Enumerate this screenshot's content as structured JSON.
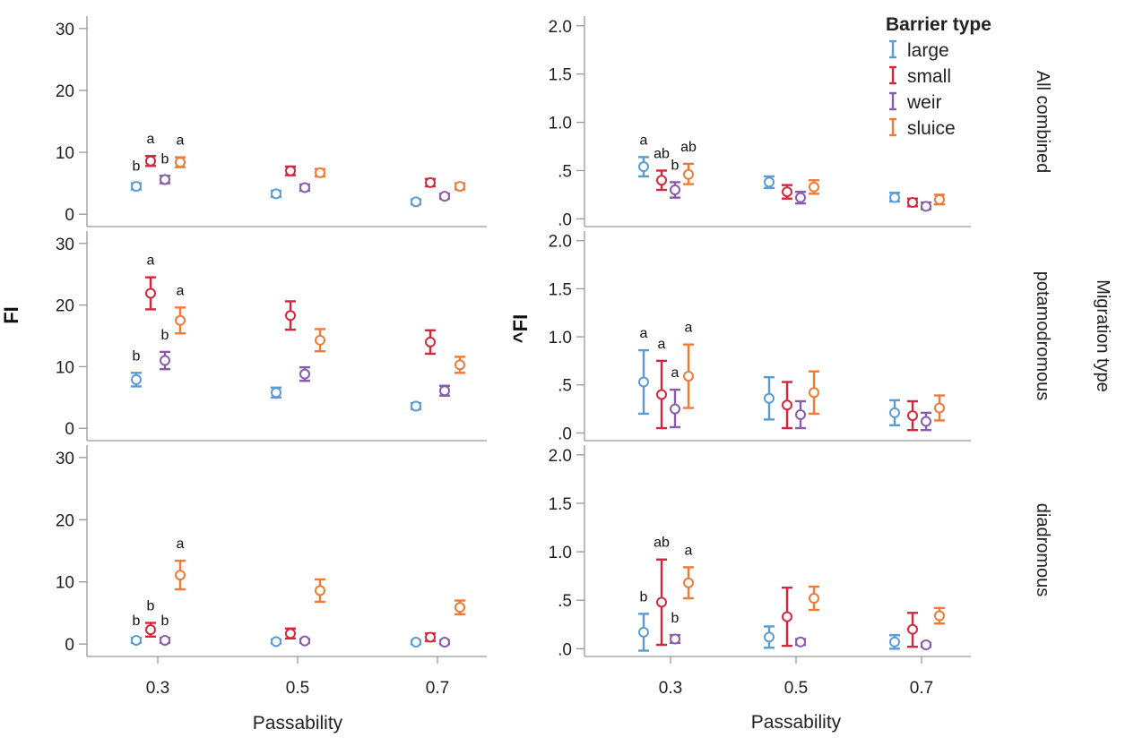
{
  "legend": {
    "title": "Barrier type",
    "items": [
      {
        "label": "large",
        "color": "#5b9bd5"
      },
      {
        "label": "small",
        "color": "#d6263b"
      },
      {
        "label": "weir",
        "color": "#8a5aab"
      },
      {
        "label": "sluice",
        "color": "#f07a36"
      }
    ]
  },
  "facet_title": "Migration type",
  "chart_data": [
    {
      "type": "scatter",
      "panel": "left-top",
      "row": "All combined",
      "ylabel": "",
      "xlabel": "",
      "x_ticks": [
        "0.3",
        "0.5",
        "0.7"
      ],
      "ylim": [
        -2,
        32
      ],
      "y_ticks": [
        "0",
        "10",
        "20",
        "30"
      ],
      "y_tick_values": [
        0,
        10,
        20,
        30
      ],
      "series": [
        {
          "name": "large",
          "values": [
            [
              4.5,
              4.0,
              5.0
            ],
            [
              3.3,
              2.8,
              3.8
            ],
            [
              2.0,
              1.6,
              2.4
            ]
          ],
          "letters": [
            "b",
            "",
            ""
          ]
        },
        {
          "name": "small",
          "values": [
            [
              8.6,
              7.8,
              9.4
            ],
            [
              7.0,
              6.3,
              7.7
            ],
            [
              5.1,
              4.5,
              5.7
            ]
          ],
          "letters": [
            "a",
            "",
            ""
          ]
        },
        {
          "name": "weir",
          "values": [
            [
              5.6,
              5.0,
              6.2
            ],
            [
              4.3,
              3.8,
              4.8
            ],
            [
              2.9,
              2.5,
              3.3
            ]
          ],
          "letters": [
            "b",
            "",
            ""
          ]
        },
        {
          "name": "sluice",
          "values": [
            [
              8.4,
              7.6,
              9.2
            ],
            [
              6.7,
              6.1,
              7.3
            ],
            [
              4.5,
              4.0,
              5.0
            ]
          ],
          "letters": [
            "a",
            "",
            ""
          ]
        }
      ]
    },
    {
      "type": "scatter",
      "panel": "left-middle",
      "row": "potamodromous",
      "ylabel": "FI",
      "xlabel": "",
      "x_ticks": [
        "0.3",
        "0.5",
        "0.7"
      ],
      "ylim": [
        -2,
        32
      ],
      "y_ticks": [
        "0",
        "10",
        "20",
        "30"
      ],
      "y_tick_values": [
        0,
        10,
        20,
        30
      ],
      "series": [
        {
          "name": "large",
          "values": [
            [
              7.9,
              6.8,
              9.0
            ],
            [
              5.8,
              5.0,
              6.6
            ],
            [
              3.6,
              3.1,
              4.1
            ]
          ],
          "letters": [
            "b",
            "",
            ""
          ]
        },
        {
          "name": "small",
          "values": [
            [
              21.9,
              19.3,
              24.5
            ],
            [
              18.3,
              16.0,
              20.6
            ],
            [
              14.0,
              12.1,
              15.9
            ]
          ],
          "letters": [
            "a",
            "",
            ""
          ]
        },
        {
          "name": "weir",
          "values": [
            [
              11.0,
              9.6,
              12.4
            ],
            [
              8.8,
              7.7,
              9.9
            ],
            [
              6.1,
              5.3,
              6.9
            ]
          ],
          "letters": [
            "b",
            "",
            ""
          ]
        },
        {
          "name": "sluice",
          "values": [
            [
              17.5,
              15.4,
              19.6
            ],
            [
              14.3,
              12.5,
              16.1
            ],
            [
              10.3,
              9.0,
              11.6
            ]
          ],
          "letters": [
            "a",
            "",
            ""
          ]
        }
      ]
    },
    {
      "type": "scatter",
      "panel": "left-bottom",
      "row": "diadromous",
      "ylabel": "",
      "xlabel": "Passability",
      "x_ticks": [
        "0.3",
        "0.5",
        "0.7"
      ],
      "ylim": [
        -2,
        32
      ],
      "y_ticks": [
        "0",
        "10",
        "20",
        "30"
      ],
      "y_tick_values": [
        0,
        10,
        20,
        30
      ],
      "series": [
        {
          "name": "large",
          "values": [
            [
              0.6,
              0.2,
              1.0
            ],
            [
              0.4,
              0.1,
              0.7
            ],
            [
              0.3,
              0.0,
              0.5
            ]
          ],
          "letters": [
            "b",
            "",
            ""
          ]
        },
        {
          "name": "small",
          "values": [
            [
              2.3,
              1.2,
              3.4
            ],
            [
              1.7,
              0.9,
              2.5
            ],
            [
              1.1,
              0.5,
              1.7
            ]
          ],
          "letters": [
            "b",
            "",
            ""
          ]
        },
        {
          "name": "weir",
          "values": [
            [
              0.6,
              0.2,
              1.0
            ],
            [
              0.5,
              0.2,
              0.8
            ],
            [
              0.3,
              0.0,
              0.6
            ]
          ],
          "letters": [
            "b",
            "",
            ""
          ]
        },
        {
          "name": "sluice",
          "values": [
            [
              11.1,
              8.8,
              13.4
            ],
            [
              8.6,
              6.8,
              10.4
            ],
            [
              5.9,
              4.8,
              7.0
            ]
          ],
          "letters": [
            "a",
            "",
            ""
          ]
        }
      ]
    },
    {
      "type": "scatter",
      "panel": "right-top",
      "row": "All combined",
      "ylabel": "",
      "xlabel": "",
      "x_ticks": [
        "0.3",
        "0.5",
        "0.7"
      ],
      "ylim": [
        -0.08,
        2.1
      ],
      "y_ticks": [
        ".0",
        ".5",
        "1.0",
        "1.5",
        "2.0"
      ],
      "y_tick_values": [
        0,
        0.5,
        1.0,
        1.5,
        2.0
      ],
      "series": [
        {
          "name": "large",
          "values": [
            [
              0.54,
              0.44,
              0.64
            ],
            [
              0.38,
              0.32,
              0.44
            ],
            [
              0.22,
              0.18,
              0.27
            ]
          ],
          "letters": [
            "a",
            "",
            ""
          ]
        },
        {
          "name": "small",
          "values": [
            [
              0.4,
              0.3,
              0.5
            ],
            [
              0.28,
              0.21,
              0.35
            ],
            [
              0.17,
              0.13,
              0.21
            ]
          ],
          "letters": [
            "ab",
            "",
            ""
          ]
        },
        {
          "name": "weir",
          "values": [
            [
              0.3,
              0.22,
              0.38
            ],
            [
              0.22,
              0.16,
              0.28
            ],
            [
              0.13,
              0.1,
              0.17
            ]
          ],
          "letters": [
            "b",
            "",
            ""
          ]
        },
        {
          "name": "sluice",
          "values": [
            [
              0.46,
              0.36,
              0.57
            ],
            [
              0.33,
              0.26,
              0.4
            ],
            [
              0.2,
              0.15,
              0.25
            ]
          ],
          "letters": [
            "ab",
            "",
            ""
          ]
        }
      ]
    },
    {
      "type": "scatter",
      "panel": "right-middle",
      "row": "potamodromous",
      "ylabel": "^FI",
      "xlabel": "",
      "x_ticks": [
        "0.3",
        "0.5",
        "0.7"
      ],
      "ylim": [
        -0.08,
        2.1
      ],
      "y_ticks": [
        ".0",
        ".5",
        "1.0",
        "1.5",
        "2.0"
      ],
      "y_tick_values": [
        0,
        0.5,
        1.0,
        1.5,
        2.0
      ],
      "series": [
        {
          "name": "large",
          "values": [
            [
              0.53,
              0.2,
              0.86
            ],
            [
              0.36,
              0.14,
              0.58
            ],
            [
              0.21,
              0.08,
              0.34
            ]
          ],
          "letters": [
            "a",
            "",
            ""
          ]
        },
        {
          "name": "small",
          "values": [
            [
              0.4,
              0.05,
              0.75
            ],
            [
              0.29,
              0.05,
              0.53
            ],
            [
              0.18,
              0.03,
              0.33
            ]
          ],
          "letters": [
            "a",
            "",
            ""
          ]
        },
        {
          "name": "weir",
          "values": [
            [
              0.25,
              0.06,
              0.45
            ],
            [
              0.19,
              0.05,
              0.33
            ],
            [
              0.12,
              0.03,
              0.21
            ]
          ],
          "letters": [
            "a",
            "",
            ""
          ]
        },
        {
          "name": "sluice",
          "values": [
            [
              0.59,
              0.26,
              0.92
            ],
            [
              0.42,
              0.2,
              0.64
            ],
            [
              0.26,
              0.13,
              0.39
            ]
          ],
          "letters": [
            "a",
            "",
            ""
          ]
        }
      ]
    },
    {
      "type": "scatter",
      "panel": "right-bottom",
      "row": "diadromous",
      "ylabel": "",
      "xlabel": "Passability",
      "x_ticks": [
        "0.3",
        "0.5",
        "0.7"
      ],
      "ylim": [
        -0.08,
        2.1
      ],
      "y_ticks": [
        ".0",
        ".5",
        "1.0",
        "1.5",
        "2.0"
      ],
      "y_tick_values": [
        0,
        0.5,
        1.0,
        1.5,
        2.0
      ],
      "series": [
        {
          "name": "large",
          "values": [
            [
              0.17,
              -0.02,
              0.36
            ],
            [
              0.12,
              0.01,
              0.23
            ],
            [
              0.07,
              0.0,
              0.14
            ]
          ],
          "letters": [
            "b",
            "",
            ""
          ]
        },
        {
          "name": "small",
          "values": [
            [
              0.48,
              0.04,
              0.92
            ],
            [
              0.33,
              0.03,
              0.63
            ],
            [
              0.2,
              0.02,
              0.37
            ]
          ],
          "letters": [
            "ab",
            "",
            ""
          ]
        },
        {
          "name": "weir",
          "values": [
            [
              0.1,
              0.06,
              0.14
            ],
            [
              0.07,
              0.04,
              0.1
            ],
            [
              0.04,
              0.02,
              0.06
            ]
          ],
          "letters": [
            "b",
            "",
            ""
          ]
        },
        {
          "name": "sluice",
          "values": [
            [
              0.68,
              0.52,
              0.84
            ],
            [
              0.52,
              0.4,
              0.64
            ],
            [
              0.34,
              0.26,
              0.42
            ]
          ],
          "letters": [
            "a",
            "",
            ""
          ]
        }
      ]
    }
  ]
}
